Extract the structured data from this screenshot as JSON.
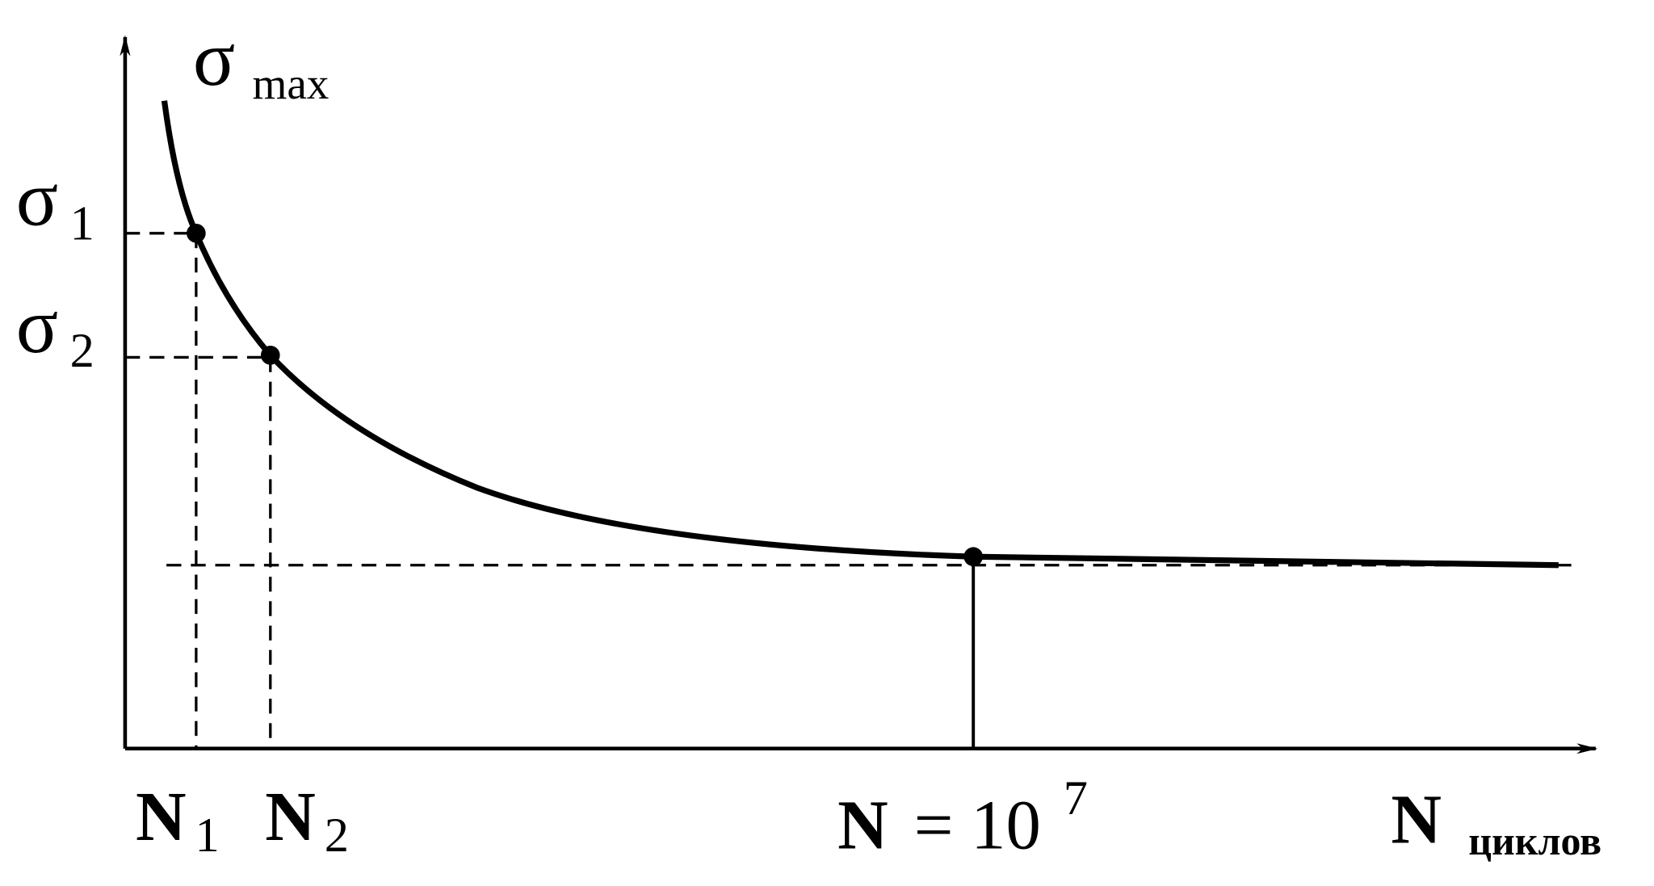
{
  "axis_labels": {
    "y": {
      "symbol": "σ",
      "subscript": "max"
    },
    "x": {
      "symbol": "N",
      "subscript": "циклов"
    }
  },
  "y_marks": [
    {
      "symbol": "σ",
      "subscript": "1"
    },
    {
      "symbol": "σ",
      "subscript": "2"
    }
  ],
  "x_marks": [
    {
      "symbol": "N",
      "subscript": "1"
    },
    {
      "symbol": "N",
      "subscript": "2"
    },
    {
      "symbol": "N",
      "text": "= 10",
      "superscript": "7"
    }
  ]
}
